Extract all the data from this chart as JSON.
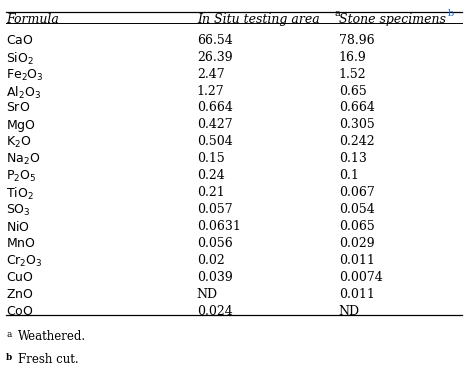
{
  "col1_header": "Formula",
  "col2_header": "In Situ testing area",
  "col2_superscript": "a",
  "col3_header": "Stone specimens",
  "col3_superscript": "b",
  "rows": [
    {
      "formula_parts": [
        [
          "CaO",
          false
        ]
      ],
      "col2": "66.54",
      "col3": "78.96"
    },
    {
      "formula_parts": [
        [
          "SiO",
          false
        ],
        [
          "2",
          true
        ]
      ],
      "col2": "26.39",
      "col3": "16.9"
    },
    {
      "formula_parts": [
        [
          "Fe",
          false
        ],
        [
          "2",
          true
        ],
        [
          "O",
          false
        ],
        [
          "3",
          true
        ]
      ],
      "col2": "2.47",
      "col3": "1.52"
    },
    {
      "formula_parts": [
        [
          "Al",
          false
        ],
        [
          "2",
          true
        ],
        [
          "O",
          false
        ],
        [
          "3",
          true
        ]
      ],
      "col2": "1.27",
      "col3": "0.65"
    },
    {
      "formula_parts": [
        [
          "SrO",
          false
        ]
      ],
      "col2": "0.664",
      "col3": "0.664"
    },
    {
      "formula_parts": [
        [
          "MgO",
          false
        ]
      ],
      "col2": "0.427",
      "col3": "0.305"
    },
    {
      "formula_parts": [
        [
          "K",
          false
        ],
        [
          "2",
          true
        ],
        [
          "O",
          false
        ]
      ],
      "col2": "0.504",
      "col3": "0.242"
    },
    {
      "formula_parts": [
        [
          "Na",
          false
        ],
        [
          "2",
          true
        ],
        [
          "O",
          false
        ]
      ],
      "col2": "0.15",
      "col3": "0.13"
    },
    {
      "formula_parts": [
        [
          "P",
          false
        ],
        [
          "2",
          true
        ],
        [
          "O",
          false
        ],
        [
          "5",
          true
        ]
      ],
      "col2": "0.24",
      "col3": "0.1"
    },
    {
      "formula_parts": [
        [
          "TiO",
          false
        ],
        [
          "2",
          true
        ]
      ],
      "col2": "0.21",
      "col3": "0.067"
    },
    {
      "formula_parts": [
        [
          "SO",
          false
        ],
        [
          "3",
          true
        ]
      ],
      "col2": "0.057",
      "col3": "0.054"
    },
    {
      "formula_parts": [
        [
          "NiO",
          false
        ]
      ],
      "col2": "0.0631",
      "col3": "0.065"
    },
    {
      "formula_parts": [
        [
          "MnO",
          false
        ]
      ],
      "col2": "0.056",
      "col3": "0.029"
    },
    {
      "formula_parts": [
        [
          "Cr",
          false
        ],
        [
          "2",
          true
        ],
        [
          "O",
          false
        ],
        [
          "3",
          true
        ]
      ],
      "col2": "0.02",
      "col3": "0.011"
    },
    {
      "formula_parts": [
        [
          "CuO",
          false
        ]
      ],
      "col2": "0.039",
      "col3": "0.0074"
    },
    {
      "formula_parts": [
        [
          "ZnO",
          false
        ]
      ],
      "col2": "ND",
      "col3": "0.011"
    },
    {
      "formula_parts": [
        [
          "CoO",
          false
        ]
      ],
      "col2": "0.024",
      "col3": "ND"
    }
  ],
  "footnote_a": "Weathered.",
  "footnote_b": "Fresh cut.",
  "bg_color": "#ffffff",
  "text_color": "#000000",
  "header_fontsize": 9,
  "body_fontsize": 9,
  "footnote_fontsize": 8.5
}
